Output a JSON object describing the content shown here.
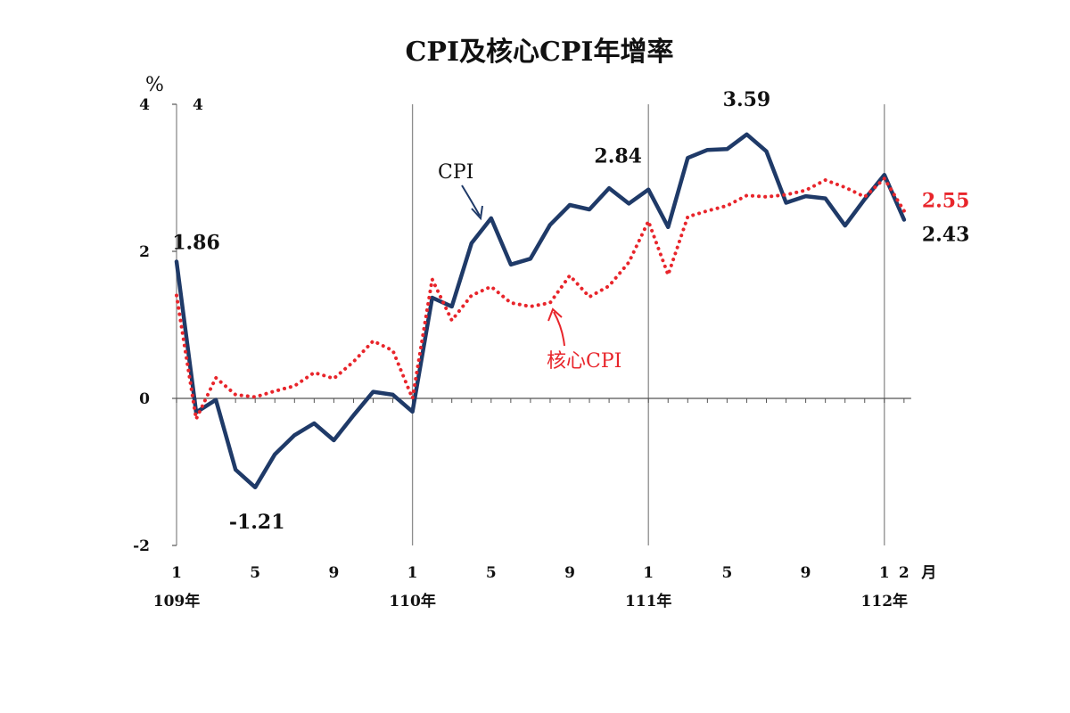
{
  "chart_data": {
    "type": "line",
    "title": "CPI及核心CPI年增率",
    "ylabel": "%",
    "xlabel_unit": "月",
    "ylim": [
      -2,
      4
    ],
    "yticks": [
      "4",
      "2",
      "0",
      "-2"
    ],
    "ytick_extra": "4",
    "x_month_ticks": [
      {
        "index": 0,
        "label": "1"
      },
      {
        "index": 4,
        "label": "5"
      },
      {
        "index": 8,
        "label": "9"
      },
      {
        "index": 12,
        "label": "1"
      },
      {
        "index": 16,
        "label": "5"
      },
      {
        "index": 20,
        "label": "9"
      },
      {
        "index": 24,
        "label": "1"
      },
      {
        "index": 28,
        "label": "5"
      },
      {
        "index": 32,
        "label": "9"
      },
      {
        "index": 36,
        "label": "1"
      },
      {
        "index": 37,
        "label": "2"
      }
    ],
    "year_labels": [
      {
        "index": 0,
        "label": "109年"
      },
      {
        "index": 12,
        "label": "110年"
      },
      {
        "index": 24,
        "label": "111年"
      },
      {
        "index": 36,
        "label": "112年"
      }
    ],
    "series": [
      {
        "name": "CPI",
        "color": "#1f3a68",
        "style": "solid",
        "values": [
          1.86,
          -0.19,
          -0.02,
          -0.97,
          -1.21,
          -0.76,
          -0.5,
          -0.34,
          -0.57,
          -0.23,
          0.09,
          0.05,
          -0.18,
          1.37,
          1.25,
          2.11,
          2.45,
          1.82,
          1.9,
          2.36,
          2.63,
          2.57,
          2.86,
          2.65,
          2.84,
          2.33,
          3.27,
          3.38,
          3.39,
          3.59,
          3.36,
          2.66,
          2.75,
          2.72,
          2.35,
          2.71,
          3.04,
          2.43
        ]
      },
      {
        "name": "核心CPI",
        "color": "#e8252b",
        "style": "dotted",
        "values": [
          1.4,
          -0.28,
          0.28,
          0.05,
          0.02,
          0.1,
          0.17,
          0.35,
          0.27,
          0.5,
          0.78,
          0.65,
          0.0,
          1.62,
          1.06,
          1.4,
          1.52,
          1.3,
          1.25,
          1.3,
          1.67,
          1.38,
          1.53,
          1.85,
          2.41,
          1.68,
          2.47,
          2.55,
          2.62,
          2.76,
          2.74,
          2.77,
          2.83,
          2.97,
          2.87,
          2.74,
          2.99,
          2.55
        ]
      }
    ],
    "annotations": [
      {
        "text": "1.86",
        "series": 0,
        "index": 0
      },
      {
        "text": "-1.21",
        "series": 0,
        "index": 4
      },
      {
        "text": "2.84",
        "series": 0,
        "index": 24
      },
      {
        "text": "3.59",
        "series": 0,
        "index": 29
      },
      {
        "text": "2.55",
        "series": 1,
        "index": 37
      },
      {
        "text": "2.43",
        "series": 0,
        "index": 37
      }
    ],
    "legend_labels": {
      "cpi": "CPI",
      "core": "核心CPI"
    }
  }
}
